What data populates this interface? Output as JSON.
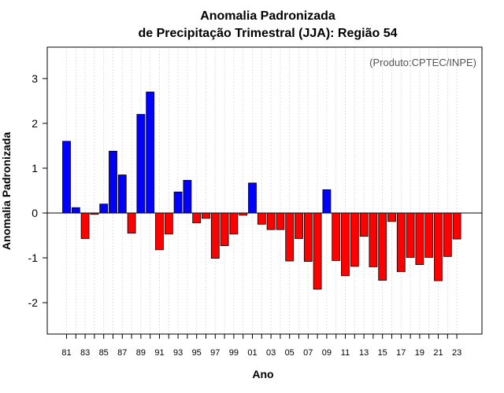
{
  "chart_data": {
    "type": "bar",
    "title": [
      "Anomalia Padronizada",
      "de Precipitação Trimestral (JJA): Região 54"
    ],
    "xlabel": "Ano",
    "ylabel": "Anomalia Padronizada",
    "annotation": "(Produto:CPTEC/INPE)",
    "ylim": [
      -2.7,
      3.7
    ],
    "yticks": [
      -2,
      -1,
      0,
      1,
      2,
      3
    ],
    "grid": true,
    "colors": {
      "positive": "#0000ff",
      "negative": "#ff0000"
    },
    "categories": [
      "81",
      "82",
      "83",
      "84",
      "85",
      "86",
      "87",
      "88",
      "89",
      "90",
      "91",
      "92",
      "93",
      "94",
      "95",
      "96",
      "97",
      "98",
      "99",
      "00",
      "01",
      "02",
      "03",
      "04",
      "05",
      "06",
      "07",
      "08",
      "09",
      "10",
      "11",
      "12",
      "13",
      "14",
      "15",
      "16",
      "17",
      "18",
      "19",
      "20",
      "21",
      "22",
      "23"
    ],
    "tick_labels": [
      "81",
      "83",
      "85",
      "87",
      "89",
      "91",
      "93",
      "95",
      "97",
      "99",
      "01",
      "03",
      "05",
      "07",
      "09",
      "11",
      "13",
      "15",
      "17",
      "19",
      "21",
      "23"
    ],
    "values": [
      1.6,
      0.12,
      -0.57,
      -0.03,
      0.2,
      1.38,
      0.85,
      -0.45,
      2.2,
      2.7,
      -0.82,
      -0.47,
      0.47,
      0.73,
      -0.22,
      -0.12,
      -1.01,
      -0.73,
      -0.47,
      -0.05,
      0.67,
      -0.25,
      -0.37,
      -0.37,
      -1.07,
      -0.57,
      -1.08,
      -1.7,
      0.52,
      -1.06,
      -1.4,
      -1.19,
      -0.52,
      -1.2,
      -1.5,
      -0.19,
      -1.31,
      -0.99,
      -1.15,
      -0.99,
      -1.51,
      -0.97,
      -0.58
    ]
  }
}
